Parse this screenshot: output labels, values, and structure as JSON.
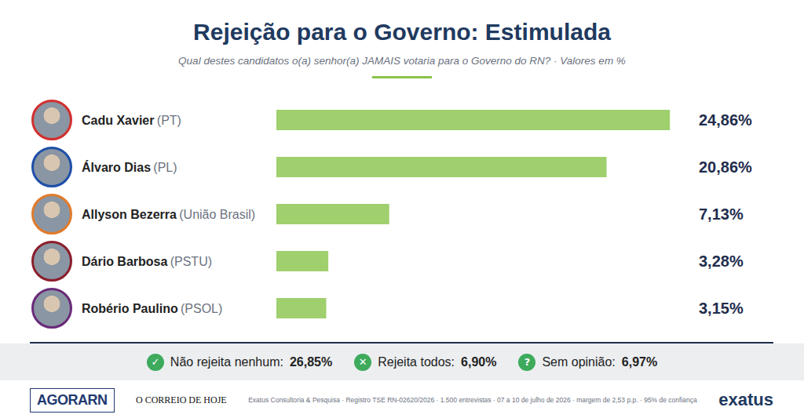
{
  "chart_data": {
    "type": "bar",
    "orientation": "horizontal",
    "title": "Rejeição para o Governo: Estimulada",
    "subtitle": "Qual destes candidatos o(a) senhor(a) JAMAIS votaria para o Governo do RN? · Valores em %",
    "categories": [
      "Cadu Xavier",
      "Álvaro Dias",
      "Allyson Bezerra",
      "Dário Barbosa",
      "Robério Paulino"
    ],
    "parties": [
      "(PT)",
      "(PL)",
      "(União Brasil)",
      "(PSTU)",
      "(PSOL)"
    ],
    "values": [
      24.86,
      20.86,
      7.13,
      3.28,
      3.15
    ],
    "value_labels": [
      "24,86%",
      "20,86%",
      "7,13%",
      "3,28%",
      "3,15%"
    ],
    "color": "#a0cf6e",
    "data_labels": true,
    "xlim": [
      0,
      25
    ],
    "grid": false,
    "tick_labels": "y",
    "summary": [
      {
        "icon": "✓",
        "label": "Não rejeita nenhum:",
        "value": 26.85,
        "value_label": "26,85%"
      },
      {
        "icon": "✕",
        "label": "Rejeita todos:",
        "value": 6.9,
        "value_label": "6,90%"
      },
      {
        "icon": "?",
        "label": "Sem opinião:",
        "value": 6.97,
        "value_label": "6,97%"
      }
    ],
    "source": "Exatus Consultoria & Pesquisa · Registro TSE RN-02620/2026 · 1.500 entrevistas · 07 a 10 de julho de 2026 · margem de 2,53 p.p. · 95% de confiança",
    "logos": [
      "AGORARN",
      "O CORREIO DE HOJE",
      "exatus"
    ]
  }
}
